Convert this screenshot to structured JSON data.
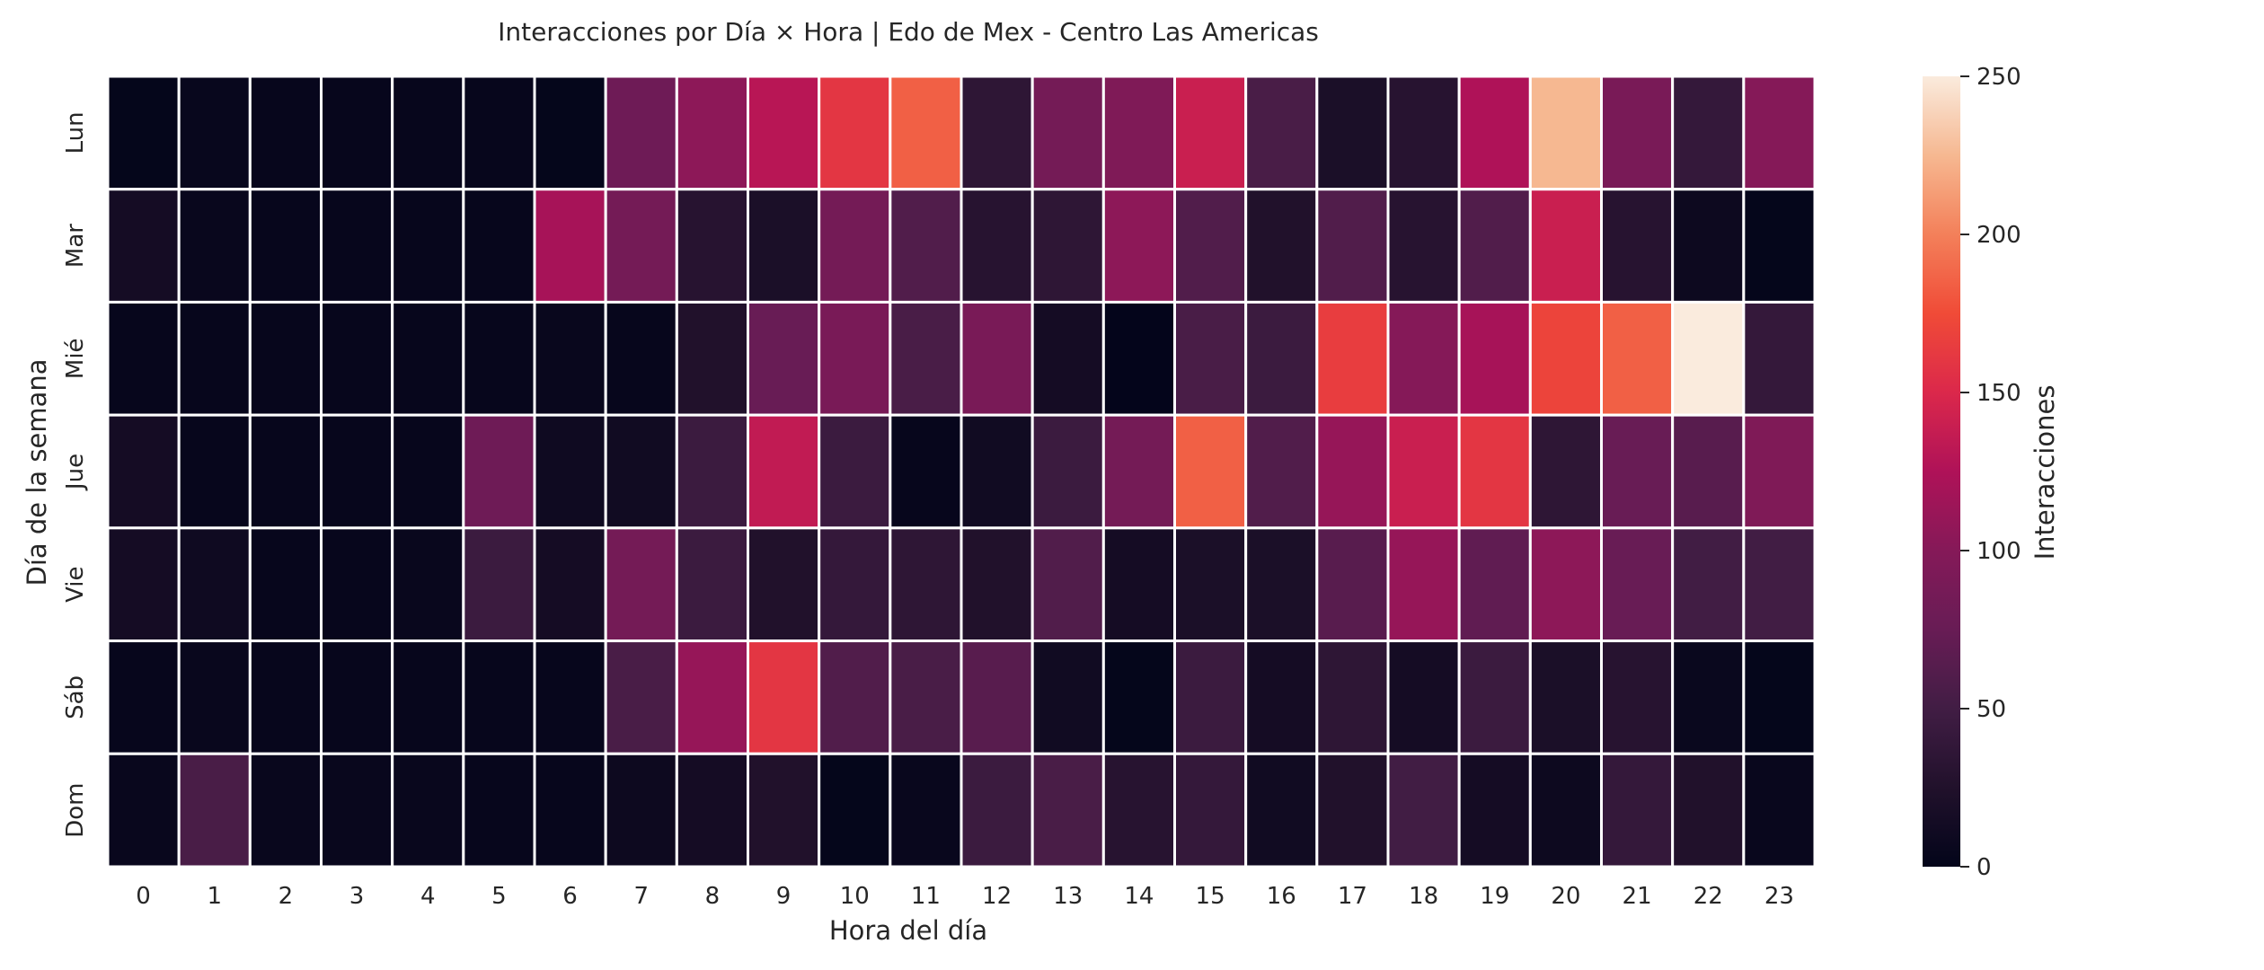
{
  "chart_data": {
    "type": "heatmap",
    "title": "Interacciones por Día × Hora | Edo de Mex - Centro Las Americas",
    "xlabel": "Hora del día",
    "ylabel": "Día de la semana",
    "colorbar_label": "Interacciones",
    "x_categories": [
      "0",
      "1",
      "2",
      "3",
      "4",
      "5",
      "6",
      "7",
      "8",
      "9",
      "10",
      "11",
      "12",
      "13",
      "14",
      "15",
      "16",
      "17",
      "18",
      "19",
      "20",
      "21",
      "22",
      "23"
    ],
    "y_categories": [
      "Lun",
      "Mar",
      "Mié",
      "Jue",
      "Vie",
      "Sáb",
      "Dom"
    ],
    "value_range": [
      0,
      250
    ],
    "colorbar_ticks": [
      "0",
      "50",
      "100",
      "150",
      "200",
      "250"
    ],
    "colormap": "rocket",
    "grid_line_color": "#ffffff",
    "values": [
      [
        2,
        4,
        3,
        3,
        3,
        3,
        2,
        80,
        105,
        130,
        160,
        185,
        35,
        85,
        95,
        140,
        55,
        20,
        30,
        125,
        225,
        90,
        40,
        100
      ],
      [
        15,
        5,
        3,
        3,
        3,
        3,
        120,
        85,
        30,
        20,
        85,
        60,
        30,
        35,
        105,
        60,
        25,
        60,
        30,
        60,
        140,
        30,
        8,
        2
      ],
      [
        3,
        3,
        3,
        3,
        3,
        3,
        5,
        3,
        25,
        75,
        90,
        55,
        90,
        15,
        1,
        55,
        45,
        165,
        100,
        120,
        170,
        185,
        250,
        40
      ],
      [
        15,
        3,
        3,
        3,
        3,
        80,
        10,
        12,
        45,
        135,
        45,
        3,
        12,
        45,
        85,
        185,
        60,
        110,
        140,
        160,
        35,
        75,
        65,
        95
      ],
      [
        15,
        10,
        3,
        3,
        5,
        45,
        15,
        85,
        45,
        25,
        40,
        35,
        25,
        60,
        15,
        20,
        20,
        65,
        110,
        70,
        105,
        75,
        50,
        50
      ],
      [
        3,
        5,
        3,
        3,
        3,
        3,
        3,
        55,
        110,
        160,
        60,
        55,
        65,
        12,
        2,
        45,
        15,
        35,
        15,
        45,
        20,
        30,
        6,
        2
      ],
      [
        5,
        55,
        5,
        5,
        5,
        3,
        3,
        8,
        15,
        25,
        2,
        5,
        45,
        55,
        30,
        40,
        12,
        25,
        50,
        15,
        8,
        40,
        25,
        5
      ]
    ]
  }
}
